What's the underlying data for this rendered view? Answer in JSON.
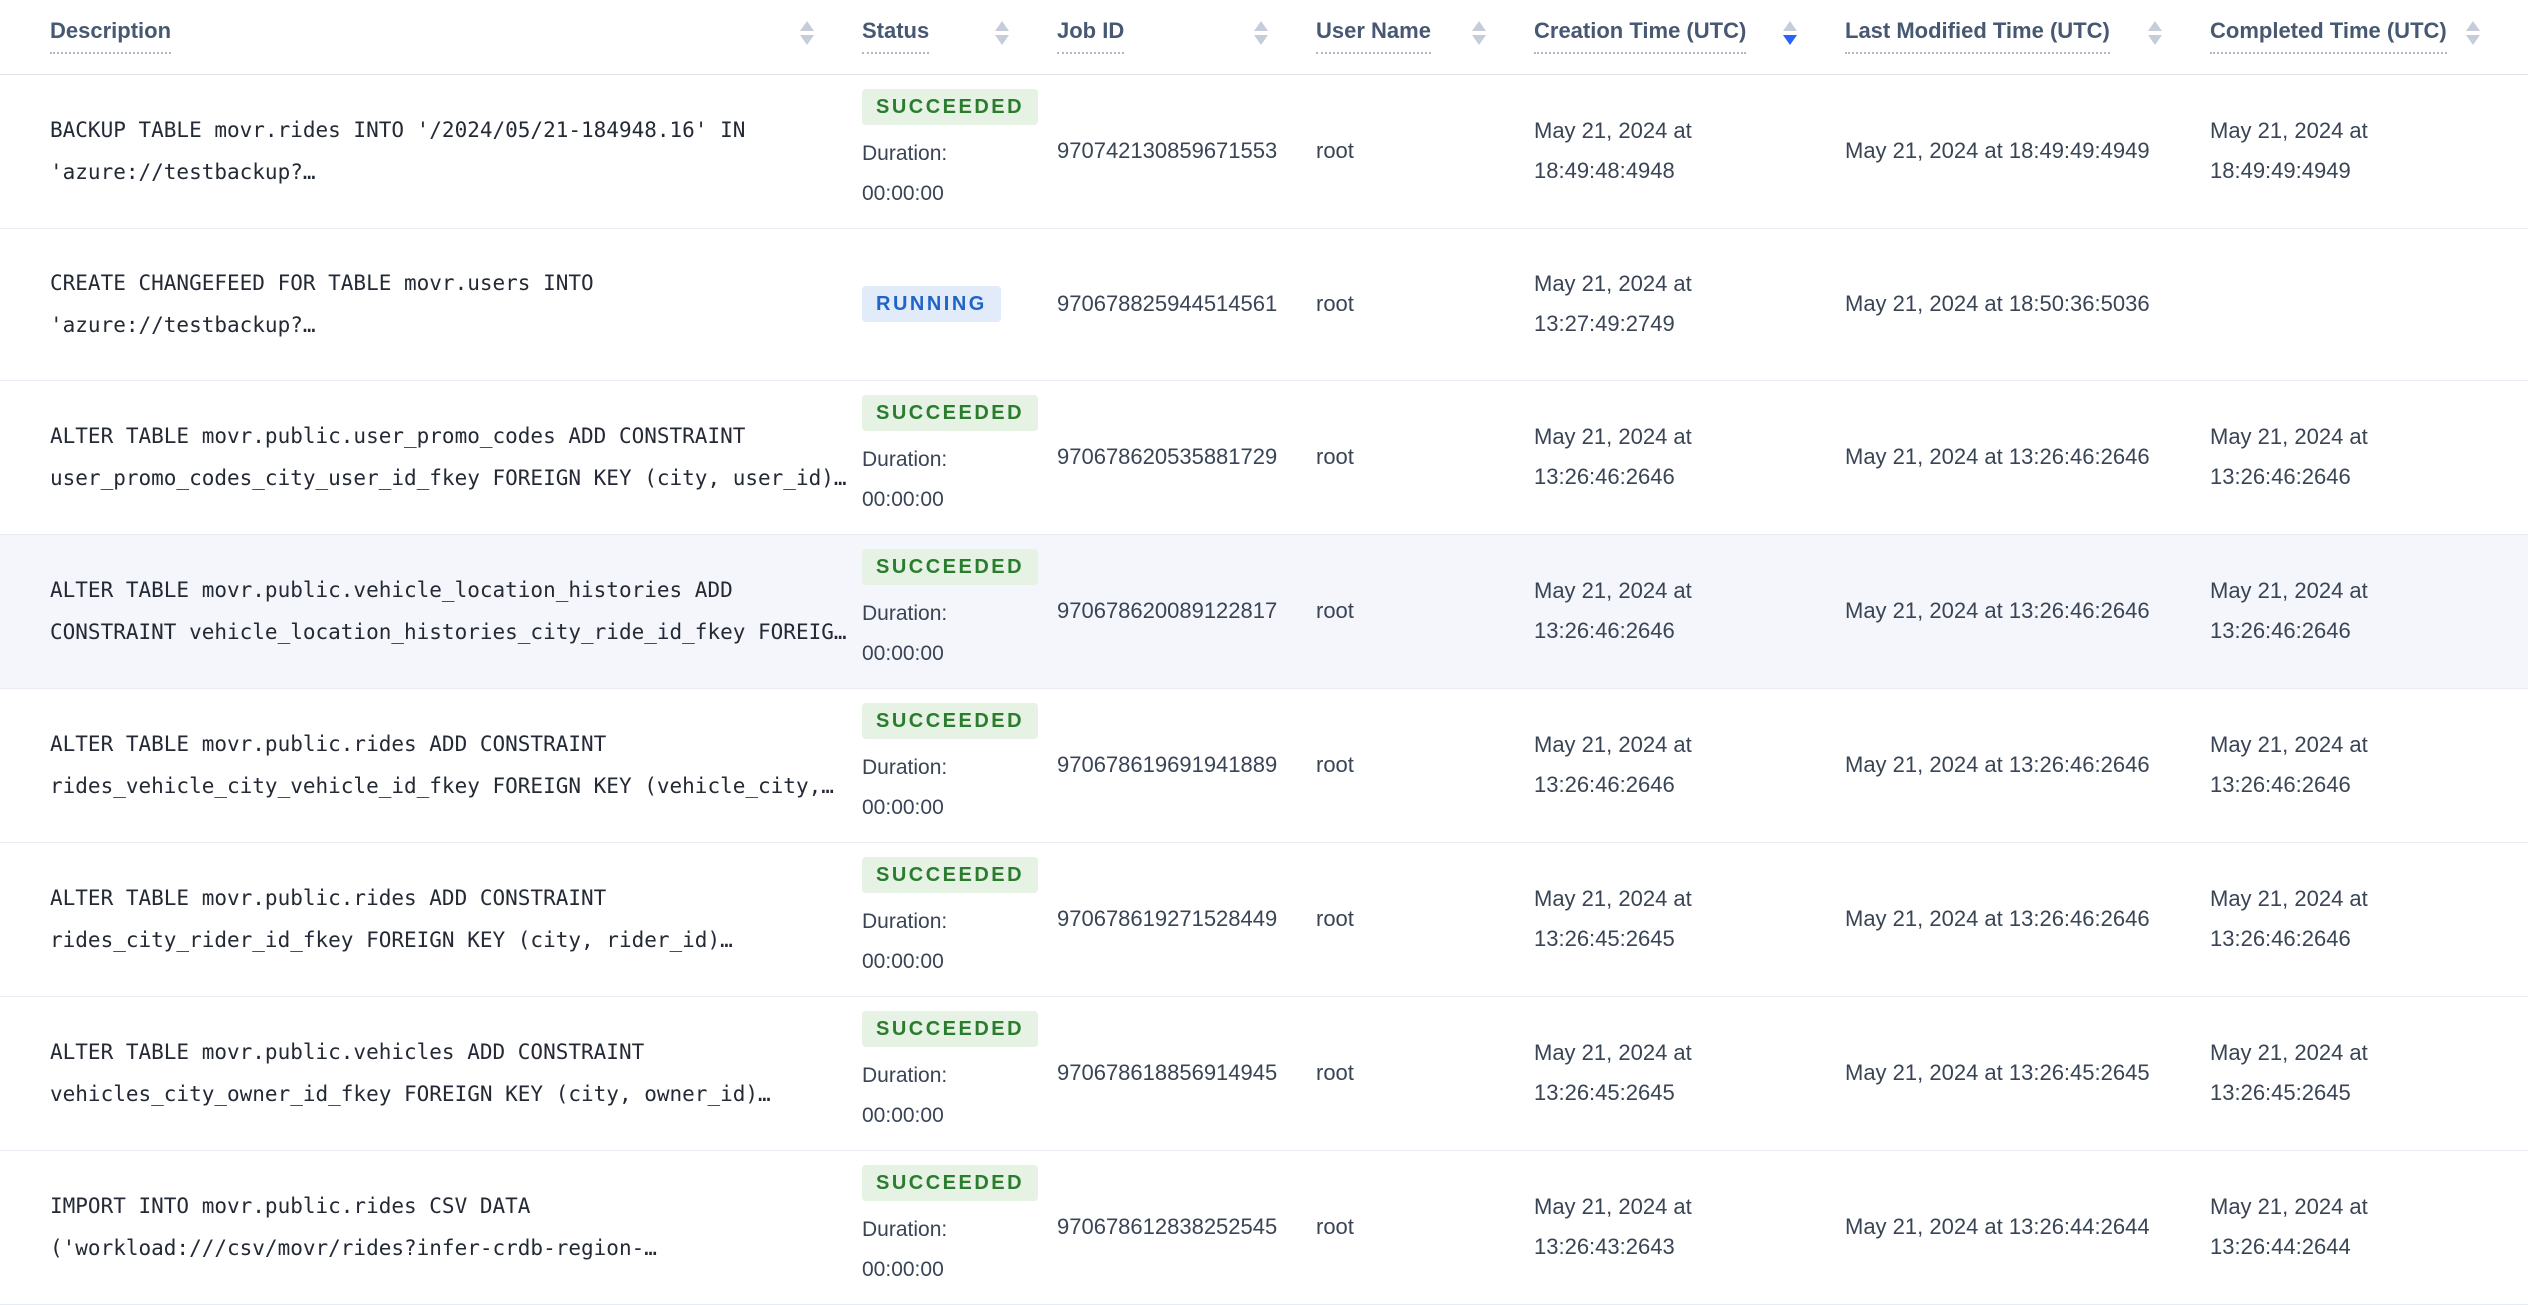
{
  "colors": {
    "accent": "#2962ff",
    "sort_inactive": "#c5cdda",
    "header_text": "#475872",
    "body_text": "#394455",
    "description_text": "#242a35",
    "row_border": "#e7ecf3",
    "highlight_row_bg": "#f4f6fb",
    "status": {
      "SUCCEEDED": {
        "text": "#2a7d2e",
        "bg": "#e6f2e3"
      },
      "RUNNING": {
        "text": "#2264c6",
        "bg": "#e1ebfa"
      }
    }
  },
  "table": {
    "columns": [
      {
        "label": "Description",
        "key": "description",
        "sortable": true,
        "sort": null
      },
      {
        "label": "Status",
        "key": "status",
        "sortable": true,
        "sort": null
      },
      {
        "label": "Job ID",
        "key": "job-id",
        "sortable": true,
        "sort": null
      },
      {
        "label": "User Name",
        "key": "user-name",
        "sortable": true,
        "sort": null
      },
      {
        "label": "Creation Time (UTC)",
        "key": "creation-time",
        "sortable": true,
        "sort": "desc"
      },
      {
        "label": "Last Modified Time (UTC)",
        "key": "last-modified-time",
        "sortable": true,
        "sort": null
      },
      {
        "label": "Completed Time (UTC)",
        "key": "completed-time",
        "sortable": true,
        "sort": null
      }
    ],
    "rows": [
      {
        "description": "BACKUP TABLE movr.rides INTO '/2024/05/21-184948.16' IN 'azure://testbackup?…",
        "status": "SUCCEEDED",
        "duration_label": "Duration:",
        "duration": "00:00:00",
        "job_id": "970742130859671553",
        "user_name": "root",
        "creation_time": "May 21, 2024 at 18:49:48:4948",
        "last_modified_time": "May 21, 2024 at 18:49:49:4949",
        "completed_time": "May 21, 2024 at 18:49:49:4949",
        "highlighted": false
      },
      {
        "description": "CREATE CHANGEFEED FOR TABLE movr.users INTO 'azure://testbackup?…",
        "status": "RUNNING",
        "duration_label": null,
        "duration": null,
        "job_id": "970678825944514561",
        "user_name": "root",
        "creation_time": "May 21, 2024 at 13:27:49:2749",
        "last_modified_time": "May 21, 2024 at 18:50:36:5036",
        "completed_time": "",
        "highlighted": false
      },
      {
        "description": "ALTER TABLE movr.public.user_promo_codes ADD CONSTRAINT user_promo_codes_city_user_id_fkey FOREIGN KEY (city, user_id)…",
        "status": "SUCCEEDED",
        "duration_label": "Duration:",
        "duration": "00:00:00",
        "job_id": "970678620535881729",
        "user_name": "root",
        "creation_time": "May 21, 2024 at 13:26:46:2646",
        "last_modified_time": "May 21, 2024 at 13:26:46:2646",
        "completed_time": "May 21, 2024 at 13:26:46:2646",
        "highlighted": false
      },
      {
        "description": "ALTER TABLE movr.public.vehicle_location_histories ADD CONSTRAINT vehicle_location_histories_city_ride_id_fkey FOREIG…",
        "status": "SUCCEEDED",
        "duration_label": "Duration:",
        "duration": "00:00:00",
        "job_id": "970678620089122817",
        "user_name": "root",
        "creation_time": "May 21, 2024 at 13:26:46:2646",
        "last_modified_time": "May 21, 2024 at 13:26:46:2646",
        "completed_time": "May 21, 2024 at 13:26:46:2646",
        "highlighted": true
      },
      {
        "description": "ALTER TABLE movr.public.rides ADD CONSTRAINT rides_vehicle_city_vehicle_id_fkey FOREIGN KEY (vehicle_city,…",
        "status": "SUCCEEDED",
        "duration_label": "Duration:",
        "duration": "00:00:00",
        "job_id": "970678619691941889",
        "user_name": "root",
        "creation_time": "May 21, 2024 at 13:26:46:2646",
        "last_modified_time": "May 21, 2024 at 13:26:46:2646",
        "completed_time": "May 21, 2024 at 13:26:46:2646",
        "highlighted": false
      },
      {
        "description": "ALTER TABLE movr.public.rides ADD CONSTRAINT rides_city_rider_id_fkey FOREIGN KEY (city, rider_id)…",
        "status": "SUCCEEDED",
        "duration_label": "Duration:",
        "duration": "00:00:00",
        "job_id": "970678619271528449",
        "user_name": "root",
        "creation_time": "May 21, 2024 at 13:26:45:2645",
        "last_modified_time": "May 21, 2024 at 13:26:46:2646",
        "completed_time": "May 21, 2024 at 13:26:46:2646",
        "highlighted": false
      },
      {
        "description": "ALTER TABLE movr.public.vehicles ADD CONSTRAINT vehicles_city_owner_id_fkey FOREIGN KEY (city, owner_id)…",
        "status": "SUCCEEDED",
        "duration_label": "Duration:",
        "duration": "00:00:00",
        "job_id": "970678618856914945",
        "user_name": "root",
        "creation_time": "May 21, 2024 at 13:26:45:2645",
        "last_modified_time": "May 21, 2024 at 13:26:45:2645",
        "completed_time": "May 21, 2024 at 13:26:45:2645",
        "highlighted": false
      },
      {
        "description": "IMPORT INTO movr.public.rides CSV DATA ('workload:///csv/movr/rides?infer-crdb-region-…",
        "status": "SUCCEEDED",
        "duration_label": "Duration:",
        "duration": "00:00:00",
        "job_id": "970678612838252545",
        "user_name": "root",
        "creation_time": "May 21, 2024 at 13:26:43:2643",
        "last_modified_time": "May 21, 2024 at 13:26:44:2644",
        "completed_time": "May 21, 2024 at 13:26:44:2644",
        "highlighted": false
      }
    ]
  }
}
